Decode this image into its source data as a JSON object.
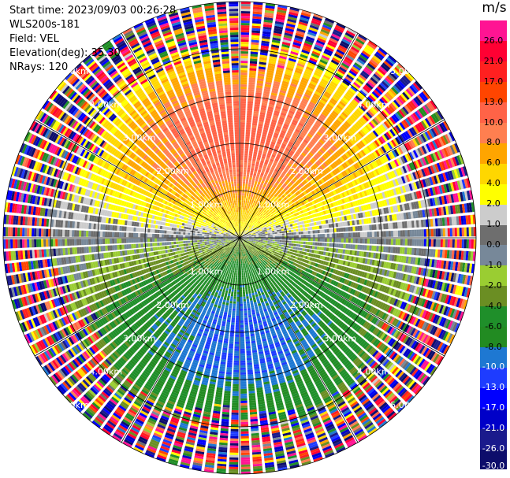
{
  "info": {
    "start_time": "Start time: 2023/09/03 00:26:28",
    "instrument": "WLS200s-181",
    "field": "Field: VEL",
    "elevation": "Elevation(deg): 35.30",
    "nrays": "NRays: 120"
  },
  "chart_data": {
    "type": "ppi",
    "title": "",
    "field": "VEL",
    "units": "m/s",
    "elevation_deg": 35.3,
    "n_rays": 120,
    "range_rings_km": [
      1.0,
      2.0,
      3.0,
      4.0,
      5.0
    ],
    "ring_labels": [
      "1.00km",
      "2.00km",
      "3.00km",
      "4.00km",
      "5.00km"
    ],
    "max_range_km": 5.0,
    "colorbar": {
      "label": "m/s",
      "levels": [
        -30,
        -26,
        -21,
        -17,
        -13,
        -10,
        -8,
        -6,
        -4,
        -2,
        -1,
        0,
        1,
        2,
        4,
        6,
        8,
        10,
        13,
        17,
        21,
        26,
        30
      ],
      "tick_labels": [
        "-30.0",
        "-26.0",
        "-21.0",
        "-17.0",
        "-13.0",
        "-10.0",
        "-8.0",
        "-6.0",
        "-4.0",
        "-2.0",
        "-1.0",
        "0.0",
        "1.0",
        "2.0",
        "4.0",
        "6.0",
        "8.0",
        "10.0",
        "13.0",
        "17.0",
        "21.0",
        "26.0"
      ],
      "colors": [
        "#0d0d6b",
        "#1a1a8c",
        "#0000c8",
        "#0000ff",
        "#1e3cff",
        "#1e78d2",
        "#228b22",
        "#1f8f2a",
        "#6b8e23",
        "#9acd32",
        "#778899",
        "#6e6e6e",
        "#cccccc",
        "#ffff00",
        "#ffd700",
        "#ffa500",
        "#ff7f50",
        "#ff6347",
        "#ff4500",
        "#ff2020",
        "#ff0033",
        "#ff1493"
      ]
    },
    "pattern": {
      "receding_azimuth_deg": 0,
      "approaching_azimuth_deg": 180,
      "peak_receding_ms": 11,
      "peak_approaching_ms": -10
    }
  }
}
